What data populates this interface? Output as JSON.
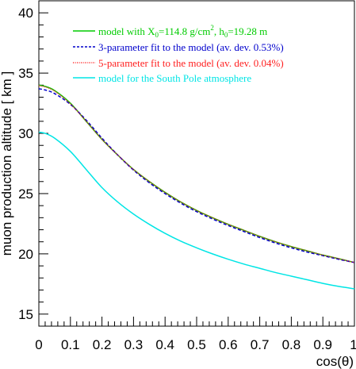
{
  "chart_data": {
    "type": "line",
    "ylabel": "muon production altitude [ km ]",
    "xlabel": "cos(θ)",
    "xlim": [
      0,
      1
    ],
    "ylim": [
      14,
      41
    ],
    "xticks": [
      "0",
      "0.1",
      "0.2",
      "0.3",
      "0.4",
      "0.5",
      "0.6",
      "0.7",
      "0.8",
      "0.9",
      "1"
    ],
    "yticks": [
      "15",
      "20",
      "25",
      "30",
      "35",
      "40"
    ],
    "grid": false,
    "legend_position": "top-right",
    "legend_lines": [
      {
        "prefix": "model with X",
        "sub1": "0",
        "mid1": "=114.8 g/cm",
        "sup": "2",
        "mid2": ", h",
        "sub2": "0",
        "suffix": "=19.28 m"
      },
      {
        "text": "3-parameter fit to the model (av. dev.  0.53%)"
      },
      {
        "text": "5-parameter fit to the model (av. dev.  0.04%)"
      },
      {
        "text": "model for the South Pole atmosphere"
      }
    ],
    "series": [
      {
        "color": "#00cc00",
        "style": "solid",
        "x": [
          0,
          0.02,
          0.05,
          0.1,
          0.15,
          0.2,
          0.25,
          0.3,
          0.35,
          0.4,
          0.45,
          0.5,
          0.55,
          0.6,
          0.65,
          0.7,
          0.75,
          0.8,
          0.85,
          0.9,
          0.95,
          1.0
        ],
        "y": [
          34.0,
          33.9,
          33.55,
          32.5,
          31.0,
          29.5,
          28.2,
          27.0,
          26.0,
          25.1,
          24.3,
          23.6,
          23.0,
          22.45,
          21.95,
          21.45,
          21.0,
          20.6,
          20.25,
          19.9,
          19.6,
          19.28
        ]
      },
      {
        "color": "#0000cc",
        "style": "dashed",
        "x": [
          0,
          0.02,
          0.05,
          0.1,
          0.15,
          0.2,
          0.25,
          0.3,
          0.35,
          0.4,
          0.45,
          0.5,
          0.55,
          0.6,
          0.65,
          0.7,
          0.75,
          0.8,
          0.85,
          0.9,
          0.95,
          1.0
        ],
        "y": [
          33.7,
          33.6,
          33.3,
          32.4,
          31.1,
          29.6,
          28.2,
          26.95,
          25.9,
          25.0,
          24.2,
          23.5,
          22.9,
          22.35,
          21.85,
          21.35,
          20.9,
          20.5,
          20.15,
          19.85,
          19.55,
          19.28
        ]
      },
      {
        "color": "#ff2020",
        "style": "dotted",
        "x": [
          0,
          0.02,
          0.05,
          0.1,
          0.15,
          0.2,
          0.25,
          0.3,
          0.35,
          0.4,
          0.45,
          0.5,
          0.55,
          0.6,
          0.65,
          0.7,
          0.75,
          0.8,
          0.85,
          0.9,
          0.95,
          1.0
        ],
        "y": [
          33.95,
          33.85,
          33.5,
          32.45,
          31.0,
          29.5,
          28.2,
          27.0,
          26.0,
          25.1,
          24.3,
          23.6,
          23.0,
          22.45,
          21.95,
          21.45,
          21.0,
          20.6,
          20.25,
          19.9,
          19.6,
          19.28
        ]
      },
      {
        "color": "#00e5e5",
        "style": "solid",
        "x": [
          0,
          0.02,
          0.05,
          0.1,
          0.15,
          0.2,
          0.25,
          0.3,
          0.35,
          0.4,
          0.45,
          0.5,
          0.55,
          0.6,
          0.65,
          0.7,
          0.75,
          0.8,
          0.85,
          0.9,
          0.95,
          1.0
        ],
        "y": [
          30.1,
          30.0,
          29.6,
          28.5,
          27.0,
          25.5,
          24.3,
          23.3,
          22.45,
          21.7,
          21.05,
          20.5,
          20.0,
          19.55,
          19.15,
          18.8,
          18.45,
          18.15,
          17.85,
          17.55,
          17.3,
          17.1
        ]
      }
    ]
  }
}
